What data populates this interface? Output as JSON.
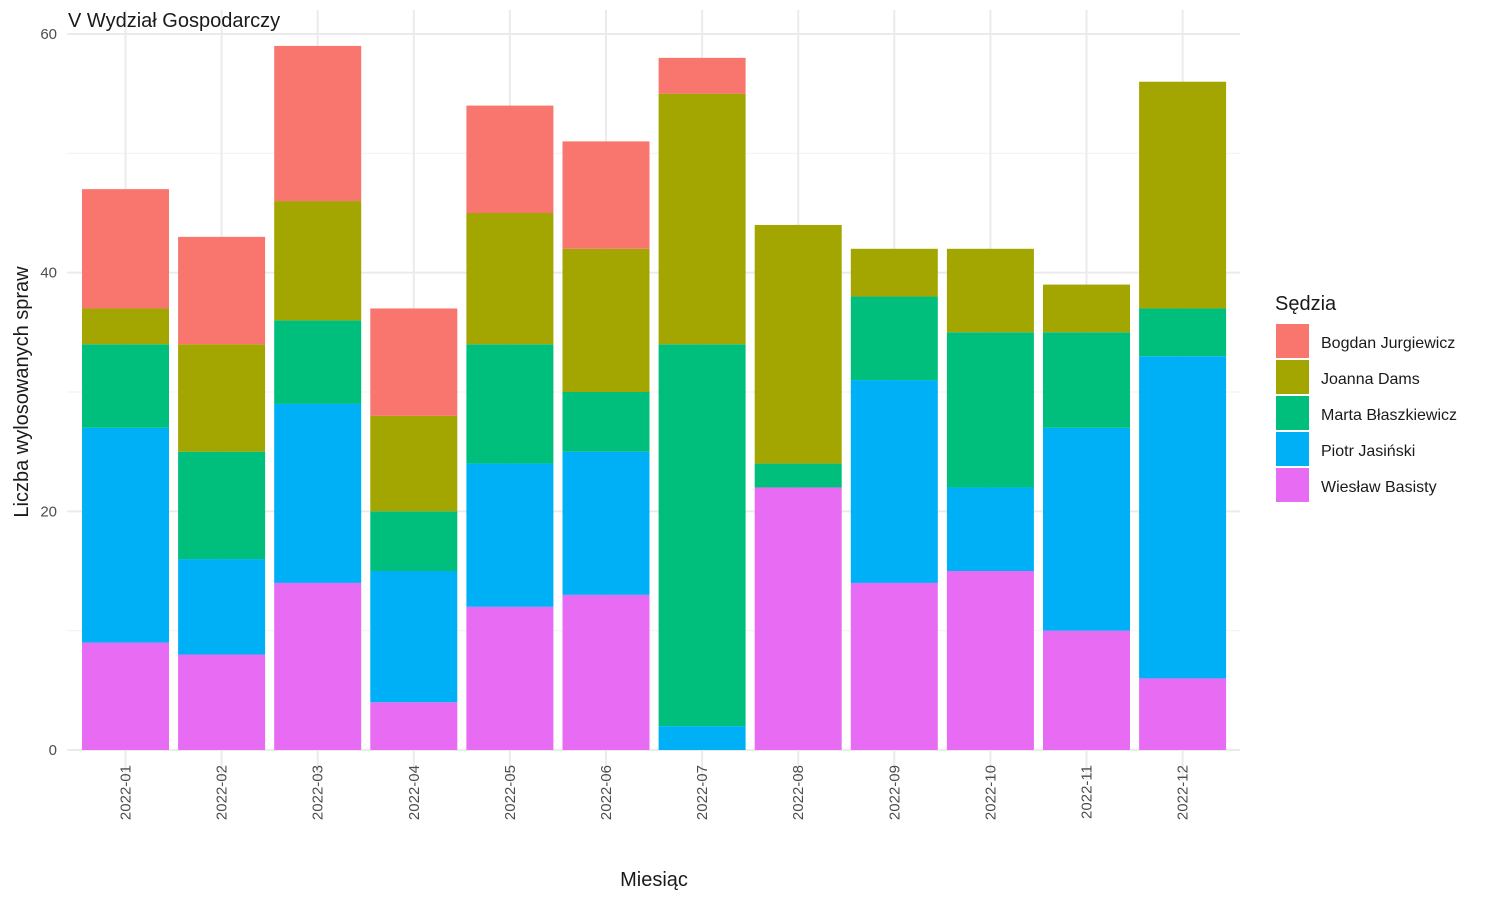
{
  "chart_data": {
    "type": "bar",
    "stacked": true,
    "title": "V Wydział Gospodarczy",
    "xlabel": "Miesiąc",
    "ylabel": "Liczba wylosowanych spraw",
    "ylim": [
      0,
      60
    ],
    "yticks": [
      0,
      20,
      40,
      60
    ],
    "grid": true,
    "legend_title": "Sędzia",
    "legend_position": "right",
    "categories": [
      "2022-01",
      "2022-02",
      "2022-03",
      "2022-04",
      "2022-05",
      "2022-06",
      "2022-07",
      "2022-08",
      "2022-09",
      "2022-10",
      "2022-11",
      "2022-12"
    ],
    "series": [
      {
        "name": "Wiesław Basisty",
        "color": "#E76BF3",
        "values": [
          9,
          8,
          14,
          4,
          12,
          13,
          0,
          22,
          14,
          15,
          10,
          6
        ]
      },
      {
        "name": "Piotr Jasiński",
        "color": "#00B0F6",
        "values": [
          18,
          8,
          15,
          11,
          12,
          12,
          2,
          0,
          17,
          7,
          17,
          27
        ]
      },
      {
        "name": "Marta Błaszkiewicz",
        "color": "#00BF7D",
        "values": [
          7,
          9,
          7,
          5,
          10,
          5,
          32,
          2,
          7,
          13,
          8,
          4
        ]
      },
      {
        "name": "Joanna Dams",
        "color": "#A3A500",
        "values": [
          3,
          9,
          10,
          8,
          11,
          12,
          21,
          20,
          4,
          7,
          4,
          19
        ]
      },
      {
        "name": "Bogdan Jurgiewicz",
        "color": "#F8766D",
        "values": [
          10,
          9,
          13,
          9,
          9,
          9,
          3,
          0,
          0,
          0,
          0,
          0
        ]
      }
    ],
    "legend_order": [
      "Bogdan Jurgiewicz",
      "Joanna Dams",
      "Marta Błaszkiewicz",
      "Piotr Jasiński",
      "Wiesław Basisty"
    ]
  }
}
